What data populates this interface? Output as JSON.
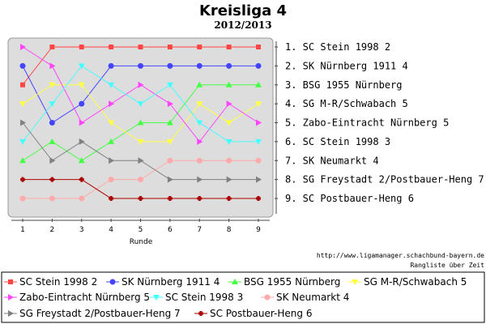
{
  "chart_data": {
    "type": "line",
    "title": "Kreisliga 4",
    "subtitle": "2012/2013",
    "xlabel": "Runde",
    "x": [
      1,
      2,
      3,
      4,
      5,
      6,
      7,
      8,
      9
    ],
    "ylim": [
      1,
      9
    ],
    "y_inverted": true,
    "grid": false,
    "rank_labels": [
      "1. SC Stein 1998 2",
      "2. SK Nürnberg 1911 4",
      "3. BSG 1955 Nürnberg",
      "4. SG M-R/Schwabach 5",
      "5. Zabo-Eintracht Nürnberg 5",
      "6. SC Stein 1998 3",
      "7. SK Neumarkt 4",
      "8. SG Freystadt 2/Postbauer-Heng 7",
      "9. SC Postbauer-Heng 6"
    ],
    "series": [
      {
        "name": "SC Stein 1998 2",
        "color": "#ff4444",
        "marker": "square",
        "values": [
          3,
          1,
          1,
          1,
          1,
          1,
          1,
          1,
          1
        ]
      },
      {
        "name": "SK Nürnberg 1911 4",
        "color": "#4444ff",
        "marker": "circle",
        "values": [
          2,
          5,
          4,
          2,
          2,
          2,
          2,
          2,
          2
        ]
      },
      {
        "name": "BSG 1955 Nürnberg",
        "color": "#44ff44",
        "marker": "triangle-up",
        "values": [
          7,
          6,
          7,
          6,
          5,
          5,
          3,
          3,
          3
        ]
      },
      {
        "name": "SG M-R/Schwabach 5",
        "color": "#ffff44",
        "marker": "triangle-down",
        "values": [
          4,
          3,
          3,
          5,
          6,
          6,
          4,
          5,
          4
        ]
      },
      {
        "name": "Zabo-Eintracht Nürnberg 5",
        "color": "#ff44ff",
        "marker": "triangle-right",
        "values": [
          1,
          2,
          5,
          4,
          3,
          4,
          6,
          4,
          5
        ]
      },
      {
        "name": "SC Stein 1998 3",
        "color": "#44ffff",
        "marker": "triangle-down",
        "values": [
          6,
          4,
          2,
          3,
          4,
          3,
          5,
          6,
          6
        ]
      },
      {
        "name": "SK Neumarkt 4",
        "color": "#ffaaaa",
        "marker": "circle",
        "values": [
          9,
          9,
          9,
          8,
          8,
          7,
          7,
          7,
          7
        ]
      },
      {
        "name": "SG Freystadt 2/Postbauer-Heng 7",
        "color": "#808080",
        "marker": "triangle-right",
        "values": [
          5,
          7,
          6,
          7,
          7,
          8,
          8,
          8,
          8
        ]
      },
      {
        "name": "SC Postbauer-Heng 6",
        "color": "#aa0000",
        "marker": "plus",
        "values": [
          8,
          8,
          8,
          9,
          9,
          9,
          9,
          9,
          9
        ]
      }
    ]
  },
  "footer": {
    "url": "http://www.ligamanager.schachbund-bayern.de",
    "caption": "Rangliste über Zeit"
  }
}
